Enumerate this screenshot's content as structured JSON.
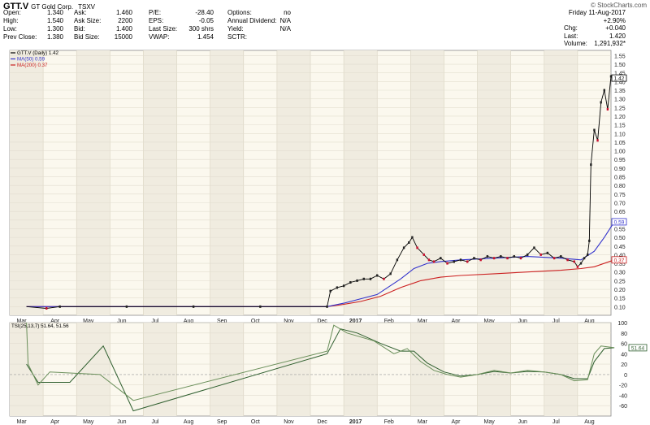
{
  "header": {
    "symbol": "GTT.V",
    "name": "GT Gold Corp.",
    "exchange": "TSXV",
    "source": "© StockCharts.com"
  },
  "quote": {
    "col1": [
      {
        "label": "Open:",
        "value": "1.340"
      },
      {
        "label": "High:",
        "value": "1.540"
      },
      {
        "label": "Low:",
        "value": "1.300"
      },
      {
        "label": "Prev Close:",
        "value": "1.380"
      }
    ],
    "col2": [
      {
        "label": "Ask:",
        "value": "1.460"
      },
      {
        "label": "Ask Size:",
        "value": "2200"
      },
      {
        "label": "Bid:",
        "value": "1.400"
      },
      {
        "label": "Bid Size:",
        "value": "15000"
      }
    ],
    "col3": [
      {
        "label": "P/E:",
        "value": "-28.40"
      },
      {
        "label": "EPS:",
        "value": "-0.05"
      },
      {
        "label": "Last Size:",
        "value": "300 shrs"
      },
      {
        "label": "VWAP:",
        "value": "1.454"
      }
    ],
    "col4": [
      {
        "label": "Options:",
        "value": "no"
      },
      {
        "label": "Annual Dividend:",
        "value": "N/A"
      },
      {
        "label": "Yield:",
        "value": "N/A"
      },
      {
        "label": "SCTR:",
        "value": ""
      }
    ],
    "day": {
      "date": "Friday 11-Aug-2017",
      "pct_change": "+2.90%",
      "chg_label": "Chg:",
      "chg_value": "+0.040",
      "last_label": "Last:",
      "last_value": "1.420",
      "volume_label": "Volume:",
      "volume_value": "1,291,932*"
    }
  },
  "chart_data": [
    {
      "type": "line",
      "legend": [
        {
          "name": "GTT.V (Daily) 1.42",
          "color": "#000000"
        },
        {
          "name": "MA(50) 0.59",
          "color": "#3333cc"
        },
        {
          "name": "MA(200) 0.37",
          "color": "#cc2222"
        }
      ],
      "ylim": [
        0.05,
        1.58
      ],
      "y_ticks": [
        0.1,
        0.15,
        0.2,
        0.25,
        0.3,
        0.35,
        0.4,
        0.45,
        0.5,
        0.55,
        0.6,
        0.65,
        0.7,
        0.75,
        0.8,
        0.85,
        0.9,
        0.95,
        1.0,
        1.05,
        1.1,
        1.15,
        1.2,
        1.25,
        1.3,
        1.35,
        1.4,
        1.45,
        1.5,
        1.55
      ],
      "x_labels": [
        "Mar",
        "Apr",
        "May",
        "Jun",
        "Jul",
        "Aug",
        "Sep",
        "Oct",
        "Nov",
        "Dec",
        "2017",
        "Feb",
        "Mar",
        "Apr",
        "May",
        "Jun",
        "Jul",
        "Aug"
      ],
      "value_markers": [
        {
          "label": "1.42",
          "value": 1.42
        },
        {
          "label": "0.59",
          "value": 0.59
        },
        {
          "label": "0.37",
          "value": 0.37
        }
      ],
      "price": [
        [
          0,
          0.1
        ],
        [
          0.6,
          0.09
        ],
        [
          1,
          0.1
        ],
        [
          3,
          0.1
        ],
        [
          5,
          0.1
        ],
        [
          7,
          0.1
        ],
        [
          9,
          0.1
        ],
        [
          9.1,
          0.19
        ],
        [
          9.3,
          0.21
        ],
        [
          9.5,
          0.22
        ],
        [
          9.7,
          0.24
        ],
        [
          9.9,
          0.25
        ],
        [
          10.1,
          0.26
        ],
        [
          10.3,
          0.26
        ],
        [
          10.5,
          0.28
        ],
        [
          10.7,
          0.26
        ],
        [
          10.9,
          0.29
        ],
        [
          11.1,
          0.37
        ],
        [
          11.3,
          0.44
        ],
        [
          11.45,
          0.47
        ],
        [
          11.55,
          0.5
        ],
        [
          11.7,
          0.44
        ],
        [
          11.9,
          0.4
        ],
        [
          12.05,
          0.37
        ],
        [
          12.2,
          0.36
        ],
        [
          12.4,
          0.38
        ],
        [
          12.6,
          0.35
        ],
        [
          12.8,
          0.36
        ],
        [
          13.0,
          0.37
        ],
        [
          13.2,
          0.36
        ],
        [
          13.4,
          0.38
        ],
        [
          13.6,
          0.37
        ],
        [
          13.8,
          0.39
        ],
        [
          14.0,
          0.38
        ],
        [
          14.2,
          0.39
        ],
        [
          14.4,
          0.38
        ],
        [
          14.6,
          0.39
        ],
        [
          14.8,
          0.38
        ],
        [
          15.0,
          0.4
        ],
        [
          15.2,
          0.44
        ],
        [
          15.4,
          0.4
        ],
        [
          15.6,
          0.41
        ],
        [
          15.8,
          0.38
        ],
        [
          16.0,
          0.39
        ],
        [
          16.2,
          0.37
        ],
        [
          16.4,
          0.36
        ],
        [
          16.5,
          0.33
        ],
        [
          16.6,
          0.35
        ],
        [
          16.7,
          0.38
        ],
        [
          16.8,
          0.4
        ],
        [
          16.85,
          0.48
        ],
        [
          16.9,
          0.92
        ],
        [
          17.0,
          1.12
        ],
        [
          17.1,
          1.06
        ],
        [
          17.2,
          1.28
        ],
        [
          17.3,
          1.35
        ],
        [
          17.4,
          1.24
        ],
        [
          17.5,
          1.43
        ],
        [
          17.6,
          1.42
        ]
      ],
      "ma50": [
        [
          0,
          0.1
        ],
        [
          9,
          0.1
        ],
        [
          9.5,
          0.12
        ],
        [
          10.5,
          0.17
        ],
        [
          11.2,
          0.26
        ],
        [
          11.6,
          0.32
        ],
        [
          12.0,
          0.35
        ],
        [
          12.4,
          0.36
        ],
        [
          13.0,
          0.37
        ],
        [
          14.0,
          0.38
        ],
        [
          15.0,
          0.39
        ],
        [
          16.0,
          0.38
        ],
        [
          16.6,
          0.37
        ],
        [
          17.0,
          0.42
        ],
        [
          17.3,
          0.5
        ],
        [
          17.6,
          0.59
        ]
      ],
      "ma200": [
        [
          0,
          0.1
        ],
        [
          9,
          0.1
        ],
        [
          9.4,
          0.11
        ],
        [
          10.0,
          0.13
        ],
        [
          10.6,
          0.16
        ],
        [
          11.2,
          0.21
        ],
        [
          11.8,
          0.25
        ],
        [
          12.4,
          0.27
        ],
        [
          13.0,
          0.28
        ],
        [
          14.0,
          0.29
        ],
        [
          15.0,
          0.3
        ],
        [
          16.0,
          0.31
        ],
        [
          16.6,
          0.32
        ],
        [
          17.0,
          0.33
        ],
        [
          17.6,
          0.37
        ]
      ]
    },
    {
      "type": "line",
      "legend": [
        {
          "name": "TSI(25,13,7) 51.64, 51.56",
          "color": "#000000"
        }
      ],
      "ylim": [
        -80,
        100
      ],
      "y_ticks": [
        -60,
        -40,
        -20,
        0,
        20,
        40,
        60,
        80,
        100
      ],
      "value_markers": [
        {
          "label": "51.64",
          "value": 51.64
        }
      ],
      "tsi": [
        [
          0,
          100
        ],
        [
          0.05,
          20
        ],
        [
          0.35,
          -20
        ],
        [
          0.7,
          5
        ],
        [
          2.2,
          0
        ],
        [
          3.2,
          -50
        ],
        [
          9.0,
          45
        ],
        [
          9.2,
          95
        ],
        [
          9.6,
          80
        ],
        [
          10.4,
          65
        ],
        [
          11.0,
          40
        ],
        [
          11.4,
          50
        ],
        [
          11.8,
          25
        ],
        [
          12.2,
          8
        ],
        [
          12.6,
          0
        ],
        [
          13.0,
          -5
        ],
        [
          13.5,
          0
        ],
        [
          14.0,
          8
        ],
        [
          14.5,
          3
        ],
        [
          15.0,
          8
        ],
        [
          15.5,
          5
        ],
        [
          16.0,
          0
        ],
        [
          16.4,
          -12
        ],
        [
          16.8,
          -10
        ],
        [
          17.0,
          40
        ],
        [
          17.2,
          55
        ],
        [
          17.6,
          51.64
        ]
      ],
      "signal": [
        [
          0,
          20
        ],
        [
          0.35,
          -15
        ],
        [
          1.3,
          -15
        ],
        [
          2.3,
          55
        ],
        [
          3.2,
          -70
        ],
        [
          9.0,
          40
        ],
        [
          9.4,
          88
        ],
        [
          9.9,
          80
        ],
        [
          10.6,
          60
        ],
        [
          11.2,
          45
        ],
        [
          11.6,
          45
        ],
        [
          12.0,
          22
        ],
        [
          12.5,
          5
        ],
        [
          13.0,
          -3
        ],
        [
          13.5,
          0
        ],
        [
          14.0,
          6
        ],
        [
          14.5,
          3
        ],
        [
          15.0,
          6
        ],
        [
          15.5,
          5
        ],
        [
          16.0,
          0
        ],
        [
          16.4,
          -8
        ],
        [
          16.8,
          -8
        ],
        [
          17.0,
          25
        ],
        [
          17.3,
          50
        ],
        [
          17.6,
          51.56
        ]
      ]
    }
  ]
}
